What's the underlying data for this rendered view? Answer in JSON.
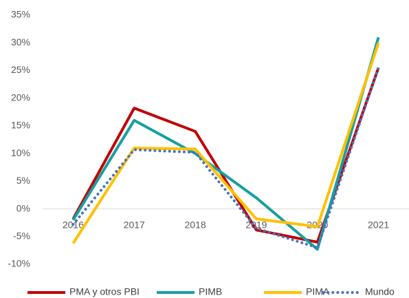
{
  "chart_data": {
    "type": "line",
    "categories": [
      "2016",
      "2017",
      "2018",
      "2019",
      "2020",
      "2021"
    ],
    "series": [
      {
        "name": "PMA y otros PBI",
        "color": "#c00000",
        "dash": "solid",
        "values": [
          -1.8,
          18.2,
          14,
          -3.8,
          -6,
          25.5
        ]
      },
      {
        "name": "PIMB",
        "color": "#179f9f",
        "dash": "solid",
        "values": [
          -2,
          16,
          10,
          2,
          -7.3,
          31
        ]
      },
      {
        "name": "PIMA",
        "color": "#ffc000",
        "dash": "solid",
        "values": [
          -6.2,
          11,
          10.8,
          -1.8,
          -3.2,
          30
        ]
      },
      {
        "name": "Mundo",
        "color": "#4472c4",
        "dash": "dotted",
        "values": [
          -2.8,
          10.7,
          10.2,
          -3.5,
          -7,
          25.5
        ]
      }
    ],
    "ylim": [
      -10,
      35
    ],
    "yticks": [
      {
        "value": -10,
        "label": "-10%"
      },
      {
        "value": -5,
        "label": "-5%"
      },
      {
        "value": 0,
        "label": "0%"
      },
      {
        "value": 5,
        "label": "5%"
      },
      {
        "value": 10,
        "label": "10%"
      },
      {
        "value": 15,
        "label": "15%"
      },
      {
        "value": 20,
        "label": "20%"
      },
      {
        "value": 25,
        "label": "25%"
      },
      {
        "value": 30,
        "label": "30%"
      },
      {
        "value": 35,
        "label": "35%"
      }
    ],
    "grid": false,
    "legend": "bottom"
  }
}
